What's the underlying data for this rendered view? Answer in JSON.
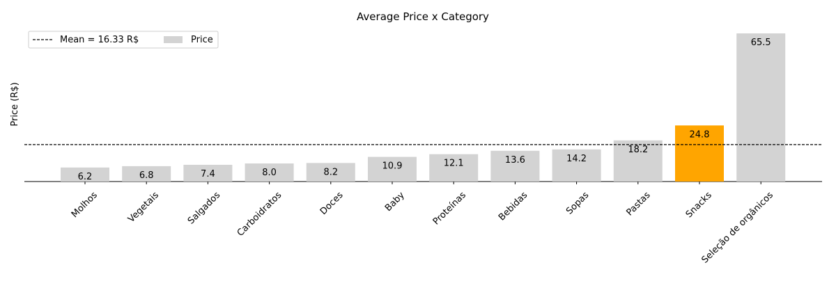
{
  "chart_data": {
    "type": "bar",
    "title": "Average Price x Category",
    "xlabel": "",
    "ylabel": "Price (R$)",
    "categories": [
      "Molhos",
      "Vegetais",
      "Salgados",
      "Carboidratos",
      "Doces",
      "Baby",
      "Proteínas",
      "Bebidas",
      "Sopas",
      "Pastas",
      "Snacks",
      "Seleção de orgânicos"
    ],
    "values": [
      6.2,
      6.8,
      7.4,
      8.0,
      8.2,
      10.9,
      12.1,
      13.6,
      14.2,
      18.2,
      24.8,
      65.5
    ],
    "data_labels": [
      "6.2",
      "6.8",
      "7.4",
      "8.0",
      "8.2",
      "10.9",
      "12.1",
      "13.6",
      "14.2",
      "18.2",
      "24.8",
      "65.5"
    ],
    "highlight_category": "Snacks",
    "colors": {
      "bar": "#d3d3d3",
      "highlight": "#ffa500",
      "mean_line": "#000000"
    },
    "mean": 16.33,
    "ylim": [
      0,
      65.5
    ],
    "grid": false,
    "legend": {
      "placement": "top-left",
      "entries": [
        {
          "label": "Mean = 16.33 R$",
          "kind": "dashed-line"
        },
        {
          "label": "Price",
          "kind": "bar"
        }
      ]
    }
  }
}
